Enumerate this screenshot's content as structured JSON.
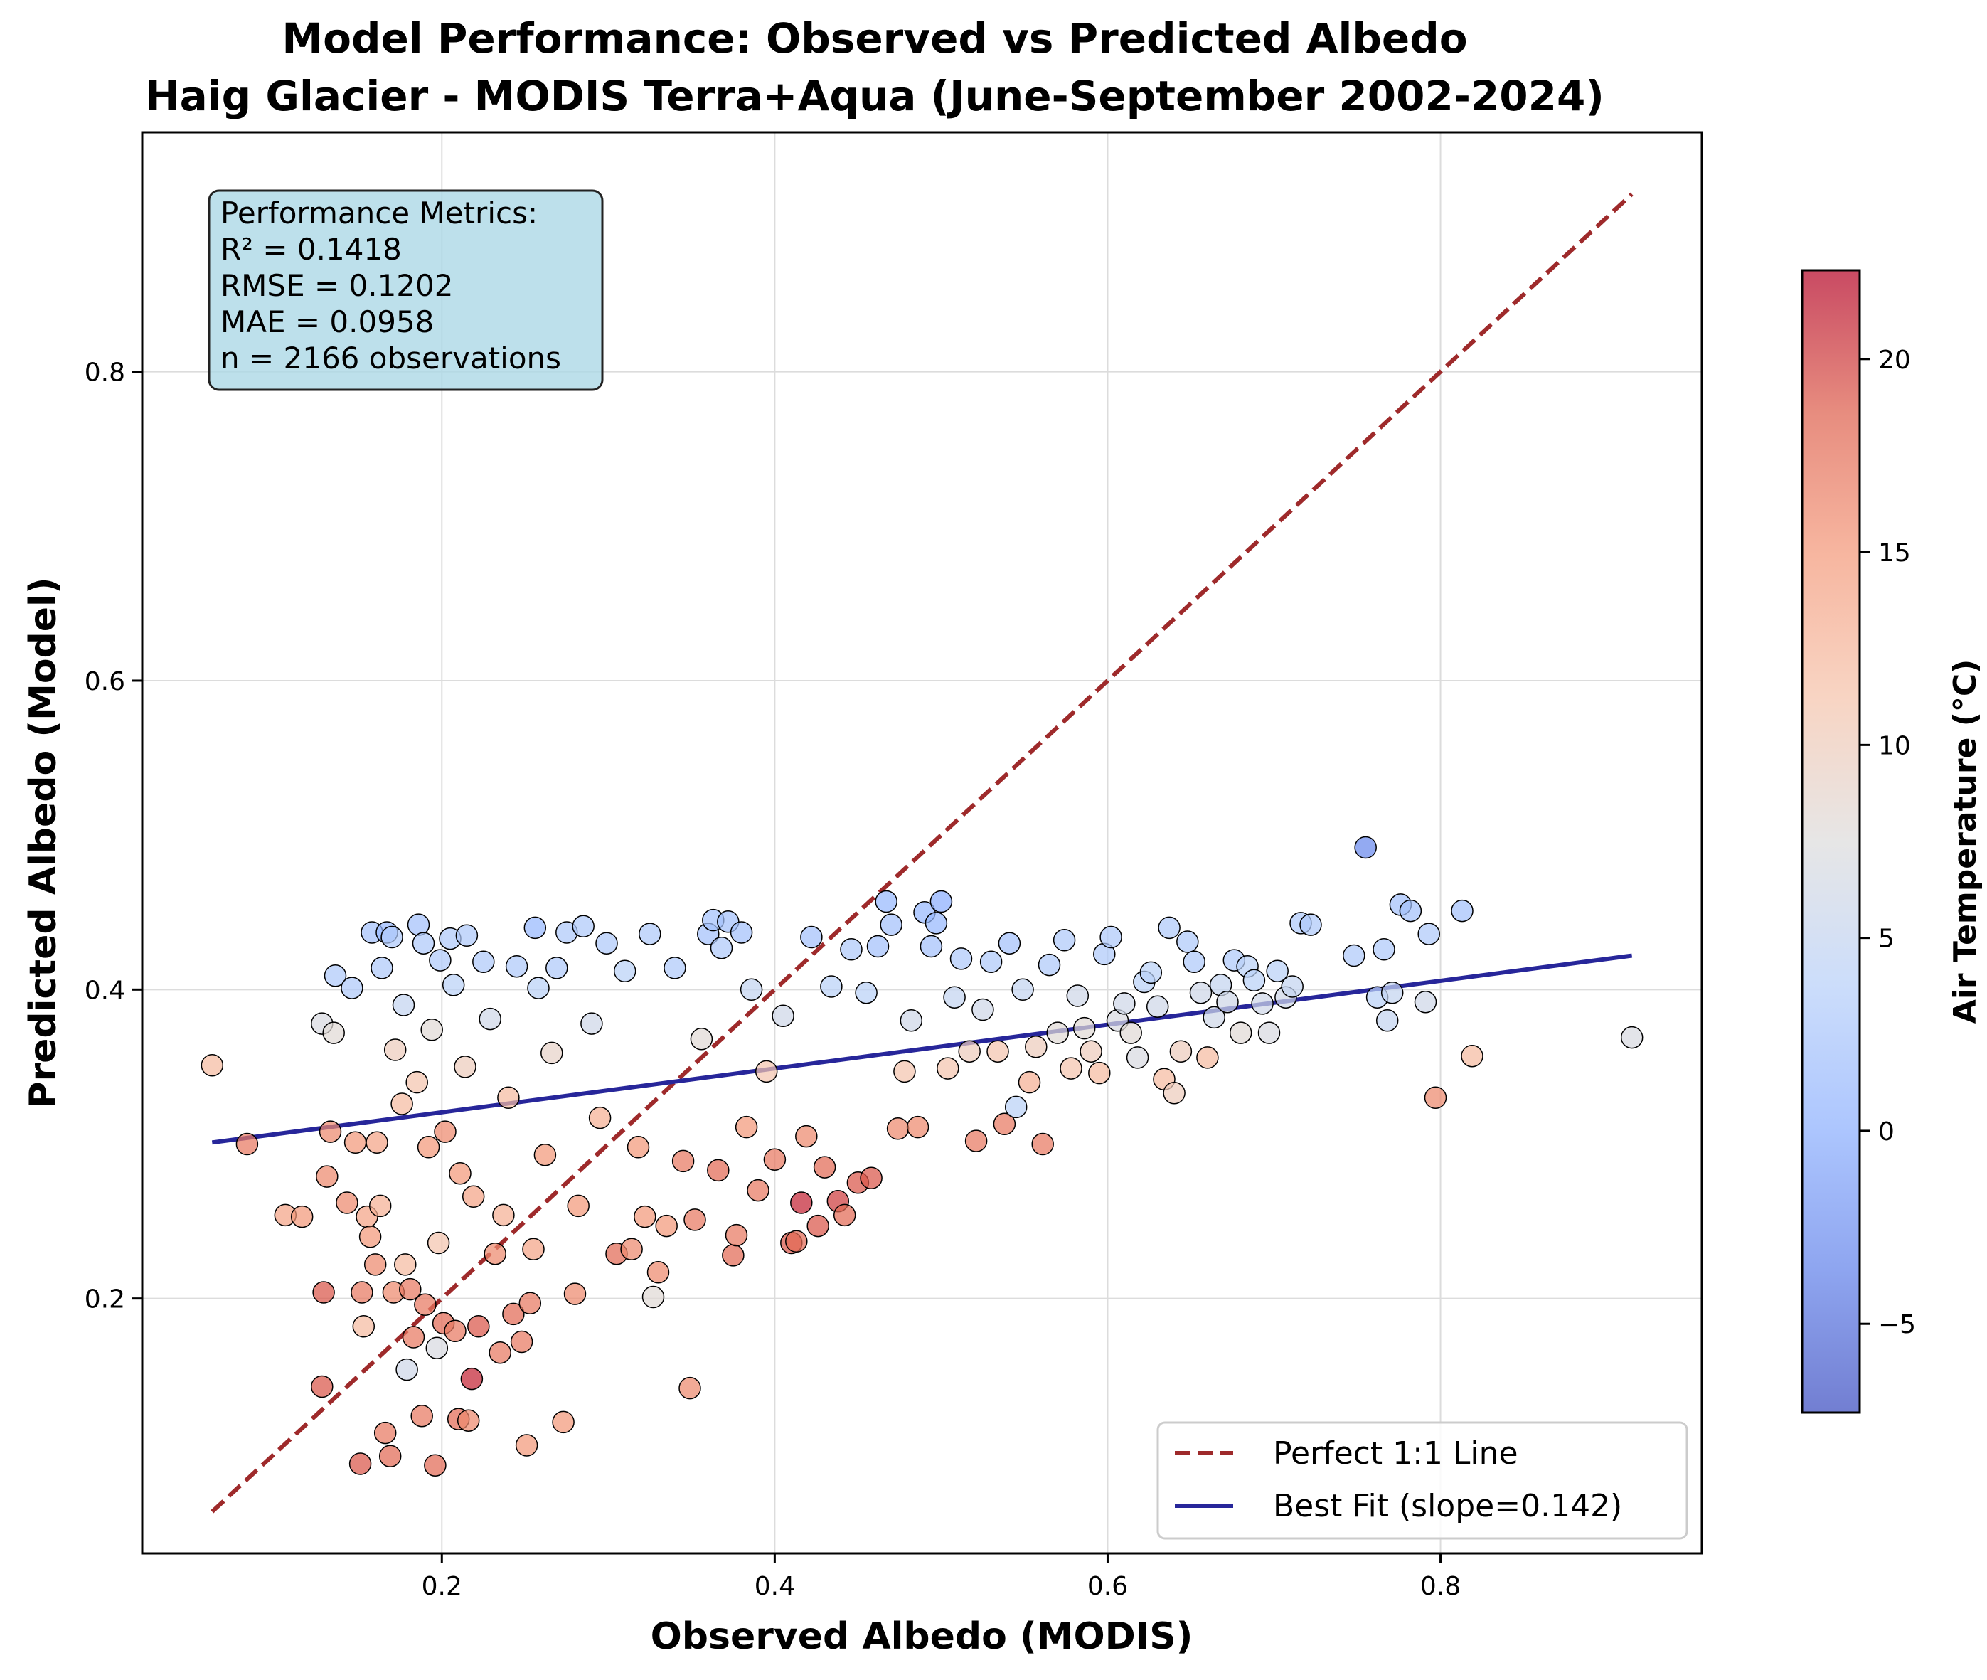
{
  "chart_data": {
    "type": "scatter",
    "title": "Model Performance: Observed vs Predicted Albedo",
    "subtitle": "Haig Glacier - MODIS Terra+Aqua (June-September 2002-2024)",
    "xlabel": "Observed Albedo (MODIS)",
    "ylabel": "Predicted Albedo (Model)",
    "xlim": [
      0.02,
      0.957
    ],
    "ylim": [
      0.035,
      0.955
    ],
    "x_ticks": [
      0.2,
      0.4,
      0.6,
      0.8
    ],
    "x_tick_labels": [
      "0.2",
      "0.4",
      "0.6",
      "0.8"
    ],
    "y_ticks": [
      0.2,
      0.4,
      0.6,
      0.8
    ],
    "y_tick_labels": [
      "0.2",
      "0.4",
      "0.6",
      "0.8"
    ],
    "grid": true,
    "legend_position": "lower-right",
    "legend": [
      {
        "label": "Perfect 1:1 Line",
        "style": "dashed",
        "color": "#9e2a2b"
      },
      {
        "label": "Best Fit (slope=0.142)",
        "style": "solid",
        "color": "#27269a"
      }
    ],
    "metrics_box": {
      "position": "top-left",
      "lines": [
        "Performance Metrics:",
        "R² = 0.1418",
        "RMSE = 0.1202",
        "MAE = 0.0958",
        "n = 2166 observations"
      ]
    },
    "reference_line": {
      "x": [
        0.062,
        0.915
      ],
      "y": [
        0.062,
        0.915
      ]
    },
    "fit_line": {
      "x": [
        0.062,
        0.915
      ],
      "y": [
        0.301,
        0.422
      ]
    },
    "colorbar": {
      "label": "Air Temperature (°C)",
      "range": [
        -7.3,
        22.3
      ],
      "ticks": [
        -5,
        0,
        5,
        10,
        15,
        20
      ],
      "tick_labels": [
        "−5",
        "0",
        "5",
        "10",
        "15",
        "20"
      ],
      "colormap": "coolwarm",
      "stops": [
        "#3b4cc0",
        "#6282ea",
        "#8db0fe",
        "#b8d0f9",
        "#dddcdc",
        "#f5c4ac",
        "#f49a7b",
        "#de604d",
        "#b40426"
      ]
    },
    "points": [
      [
        0.062,
        0.351,
        12
      ],
      [
        0.083,
        0.3,
        17
      ],
      [
        0.106,
        0.254,
        14
      ],
      [
        0.116,
        0.253,
        15
      ],
      [
        0.128,
        0.143,
        19
      ],
      [
        0.129,
        0.204,
        19
      ],
      [
        0.131,
        0.279,
        16
      ],
      [
        0.133,
        0.308,
        16
      ],
      [
        0.128,
        0.378,
        7
      ],
      [
        0.135,
        0.372,
        8
      ],
      [
        0.136,
        0.409,
        3
      ],
      [
        0.143,
        0.262,
        16
      ],
      [
        0.146,
        0.401,
        3
      ],
      [
        0.148,
        0.301,
        15
      ],
      [
        0.151,
        0.093,
        19
      ],
      [
        0.152,
        0.204,
        17
      ],
      [
        0.153,
        0.182,
        12
      ],
      [
        0.155,
        0.253,
        14
      ],
      [
        0.157,
        0.24,
        15
      ],
      [
        0.158,
        0.437,
        2
      ],
      [
        0.16,
        0.222,
        16
      ],
      [
        0.161,
        0.301,
        14
      ],
      [
        0.163,
        0.26,
        13
      ],
      [
        0.164,
        0.414,
        3
      ],
      [
        0.166,
        0.113,
        17
      ],
      [
        0.167,
        0.437,
        1
      ],
      [
        0.169,
        0.098,
        18
      ],
      [
        0.17,
        0.434,
        3
      ],
      [
        0.171,
        0.204,
        16
      ],
      [
        0.172,
        0.361,
        10
      ],
      [
        0.176,
        0.326,
        12
      ],
      [
        0.177,
        0.39,
        5
      ],
      [
        0.178,
        0.222,
        12
      ],
      [
        0.179,
        0.154,
        6
      ],
      [
        0.181,
        0.206,
        17
      ],
      [
        0.183,
        0.175,
        17
      ],
      [
        0.185,
        0.34,
        11
      ],
      [
        0.186,
        0.442,
        2
      ],
      [
        0.188,
        0.124,
        17
      ],
      [
        0.189,
        0.43,
        3
      ],
      [
        0.19,
        0.196,
        17
      ],
      [
        0.192,
        0.298,
        15
      ],
      [
        0.194,
        0.374,
        8
      ],
      [
        0.196,
        0.092,
        18
      ],
      [
        0.197,
        0.168,
        7
      ],
      [
        0.198,
        0.236,
        11
      ],
      [
        0.199,
        0.419,
        3
      ],
      [
        0.201,
        0.184,
        18
      ],
      [
        0.202,
        0.308,
        16
      ],
      [
        0.205,
        0.433,
        3
      ],
      [
        0.207,
        0.403,
        4
      ],
      [
        0.208,
        0.179,
        17
      ],
      [
        0.21,
        0.122,
        18
      ],
      [
        0.211,
        0.281,
        15
      ],
      [
        0.214,
        0.35,
        10
      ],
      [
        0.215,
        0.435,
        3
      ],
      [
        0.216,
        0.121,
        16
      ],
      [
        0.218,
        0.148,
        21
      ],
      [
        0.219,
        0.266,
        14
      ],
      [
        0.222,
        0.182,
        19
      ],
      [
        0.225,
        0.418,
        3
      ],
      [
        0.229,
        0.381,
        6
      ],
      [
        0.232,
        0.229,
        16
      ],
      [
        0.235,
        0.165,
        17
      ],
      [
        0.237,
        0.254,
        13
      ],
      [
        0.24,
        0.33,
        12
      ],
      [
        0.243,
        0.19,
        18
      ],
      [
        0.245,
        0.415,
        3
      ],
      [
        0.248,
        0.172,
        17
      ],
      [
        0.251,
        0.105,
        15
      ],
      [
        0.253,
        0.197,
        17
      ],
      [
        0.255,
        0.232,
        14
      ],
      [
        0.256,
        0.44,
        1
      ],
      [
        0.258,
        0.401,
        4
      ],
      [
        0.262,
        0.293,
        15
      ],
      [
        0.266,
        0.359,
        9
      ],
      [
        0.269,
        0.414,
        3
      ],
      [
        0.273,
        0.12,
        15
      ],
      [
        0.275,
        0.437,
        3
      ],
      [
        0.28,
        0.203,
        16
      ],
      [
        0.282,
        0.26,
        15
      ],
      [
        0.285,
        0.441,
        3
      ],
      [
        0.29,
        0.378,
        6
      ],
      [
        0.295,
        0.317,
        13
      ],
      [
        0.299,
        0.43,
        3
      ],
      [
        0.305,
        0.229,
        18
      ],
      [
        0.31,
        0.412,
        4
      ],
      [
        0.314,
        0.232,
        16
      ],
      [
        0.318,
        0.298,
        15
      ],
      [
        0.322,
        0.253,
        15
      ],
      [
        0.325,
        0.436,
        3
      ],
      [
        0.327,
        0.201,
        8
      ],
      [
        0.33,
        0.217,
        16
      ],
      [
        0.335,
        0.247,
        15
      ],
      [
        0.34,
        0.414,
        3
      ],
      [
        0.345,
        0.289,
        17
      ],
      [
        0.349,
        0.142,
        16
      ],
      [
        0.352,
        0.251,
        17
      ],
      [
        0.356,
        0.368,
        8
      ],
      [
        0.36,
        0.436,
        2
      ],
      [
        0.363,
        0.445,
        2
      ],
      [
        0.366,
        0.283,
        18
      ],
      [
        0.368,
        0.427,
        3
      ],
      [
        0.372,
        0.444,
        2
      ],
      [
        0.375,
        0.228,
        18
      ],
      [
        0.377,
        0.241,
        17
      ],
      [
        0.38,
        0.437,
        2
      ],
      [
        0.383,
        0.311,
        15
      ],
      [
        0.386,
        0.4,
        5
      ],
      [
        0.39,
        0.27,
        17
      ],
      [
        0.395,
        0.347,
        11
      ],
      [
        0.4,
        0.29,
        17
      ],
      [
        0.405,
        0.383,
        6
      ],
      [
        0.41,
        0.236,
        19
      ],
      [
        0.413,
        0.237,
        18
      ],
      [
        0.416,
        0.262,
        21
      ],
      [
        0.419,
        0.305,
        16
      ],
      [
        0.422,
        0.434,
        2
      ],
      [
        0.426,
        0.247,
        19
      ],
      [
        0.43,
        0.285,
        18
      ],
      [
        0.434,
        0.402,
        4
      ],
      [
        0.438,
        0.263,
        20
      ],
      [
        0.442,
        0.254,
        18
      ],
      [
        0.446,
        0.426,
        3
      ],
      [
        0.45,
        0.275,
        19
      ],
      [
        0.455,
        0.398,
        4
      ],
      [
        0.458,
        0.278,
        19
      ],
      [
        0.462,
        0.428,
        2
      ],
      [
        0.467,
        0.457,
        1
      ],
      [
        0.47,
        0.442,
        2
      ],
      [
        0.474,
        0.31,
        16
      ],
      [
        0.478,
        0.347,
        11
      ],
      [
        0.482,
        0.38,
        6
      ],
      [
        0.486,
        0.311,
        16
      ],
      [
        0.49,
        0.45,
        1
      ],
      [
        0.494,
        0.428,
        2
      ],
      [
        0.497,
        0.443,
        1
      ],
      [
        0.5,
        0.457,
        0
      ],
      [
        0.504,
        0.349,
        11
      ],
      [
        0.508,
        0.395,
        5
      ],
      [
        0.512,
        0.42,
        3
      ],
      [
        0.517,
        0.36,
        10
      ],
      [
        0.521,
        0.302,
        17
      ],
      [
        0.525,
        0.387,
        6
      ],
      [
        0.53,
        0.418,
        3
      ],
      [
        0.534,
        0.36,
        11
      ],
      [
        0.538,
        0.313,
        17
      ],
      [
        0.541,
        0.43,
        2
      ],
      [
        0.545,
        0.324,
        4
      ],
      [
        0.549,
        0.4,
        5
      ],
      [
        0.553,
        0.34,
        13
      ],
      [
        0.557,
        0.363,
        10
      ],
      [
        0.561,
        0.3,
        17
      ],
      [
        0.565,
        0.416,
        3
      ],
      [
        0.57,
        0.372,
        8
      ],
      [
        0.574,
        0.432,
        3
      ],
      [
        0.578,
        0.349,
        11
      ],
      [
        0.582,
        0.396,
        6
      ],
      [
        0.586,
        0.375,
        8
      ],
      [
        0.59,
        0.36,
        10
      ],
      [
        0.595,
        0.346,
        12
      ],
      [
        0.598,
        0.423,
        3
      ],
      [
        0.602,
        0.434,
        3
      ],
      [
        0.606,
        0.38,
        7
      ],
      [
        0.61,
        0.391,
        6
      ],
      [
        0.614,
        0.372,
        8
      ],
      [
        0.618,
        0.356,
        7
      ],
      [
        0.622,
        0.405,
        4
      ],
      [
        0.626,
        0.411,
        4
      ],
      [
        0.63,
        0.389,
        6
      ],
      [
        0.634,
        0.342,
        12
      ],
      [
        0.637,
        0.44,
        3
      ],
      [
        0.64,
        0.333,
        10
      ],
      [
        0.644,
        0.36,
        10
      ],
      [
        0.648,
        0.431,
        3
      ],
      [
        0.652,
        0.418,
        3
      ],
      [
        0.656,
        0.398,
        6
      ],
      [
        0.66,
        0.356,
        12
      ],
      [
        0.664,
        0.382,
        6
      ],
      [
        0.668,
        0.403,
        5
      ],
      [
        0.672,
        0.392,
        6
      ],
      [
        0.676,
        0.419,
        3
      ],
      [
        0.68,
        0.372,
        8
      ],
      [
        0.684,
        0.415,
        4
      ],
      [
        0.688,
        0.406,
        4
      ],
      [
        0.693,
        0.391,
        6
      ],
      [
        0.697,
        0.372,
        7
      ],
      [
        0.702,
        0.412,
        4
      ],
      [
        0.707,
        0.395,
        6
      ],
      [
        0.711,
        0.402,
        5
      ],
      [
        0.716,
        0.443,
        3
      ],
      [
        0.722,
        0.442,
        3
      ],
      [
        0.748,
        0.422,
        3
      ],
      [
        0.755,
        0.492,
        -3
      ],
      [
        0.762,
        0.395,
        4
      ],
      [
        0.766,
        0.426,
        3
      ],
      [
        0.768,
        0.38,
        5
      ],
      [
        0.771,
        0.398,
        5
      ],
      [
        0.776,
        0.455,
        2
      ],
      [
        0.782,
        0.451,
        2
      ],
      [
        0.791,
        0.392,
        6
      ],
      [
        0.793,
        0.436,
        3
      ],
      [
        0.797,
        0.33,
        16
      ],
      [
        0.813,
        0.451,
        2
      ],
      [
        0.819,
        0.357,
        12
      ],
      [
        0.915,
        0.369,
        7
      ]
    ]
  }
}
